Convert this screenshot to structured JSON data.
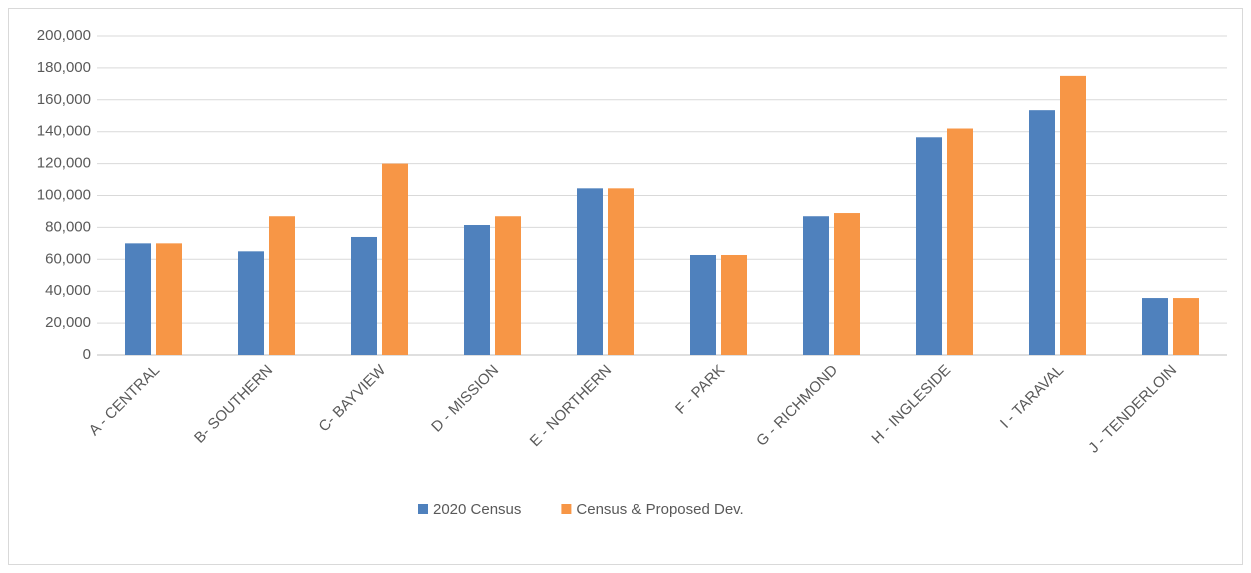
{
  "chart_data": {
    "type": "bar",
    "categories": [
      "A - CENTRAL",
      "B- SOUTHERN",
      "C- BAYVIEW",
      "D - MISSION",
      "E - NORTHERN",
      "F - PARK",
      "G - RICHMOND",
      "H - INGLESIDE",
      "I - TARAVAL",
      "J - TENDERLOIN"
    ],
    "series": [
      {
        "name": "2020 Census",
        "color": "#4f81bd",
        "values": [
          70000,
          65000,
          74000,
          81500,
          104500,
          62700,
          87000,
          136500,
          153500,
          35700
        ]
      },
      {
        "name": "Census & Proposed Dev.",
        "color": "#f79646",
        "values": [
          70000,
          87000,
          120000,
          87000,
          104500,
          62700,
          89000,
          142000,
          175000,
          35700
        ]
      }
    ],
    "ylim": [
      0,
      200000
    ],
    "yticks": [
      0,
      {
        "value": 20000,
        "label": "20,000"
      },
      {
        "value": 40000,
        "label": "40,000"
      },
      {
        "value": 60000,
        "label": "60,000"
      },
      {
        "value": 80000,
        "label": "80,000"
      },
      {
        "value": 100000,
        "label": "100,000"
      },
      {
        "value": 120000,
        "label": "120,000"
      },
      {
        "value": 140000,
        "label": "140,000"
      },
      {
        "value": 160000,
        "label": "160,000"
      },
      {
        "value": 180000,
        "label": "180,000"
      },
      {
        "value": 200000,
        "label": "200,000"
      }
    ],
    "grid": true,
    "legend": "bottom"
  }
}
